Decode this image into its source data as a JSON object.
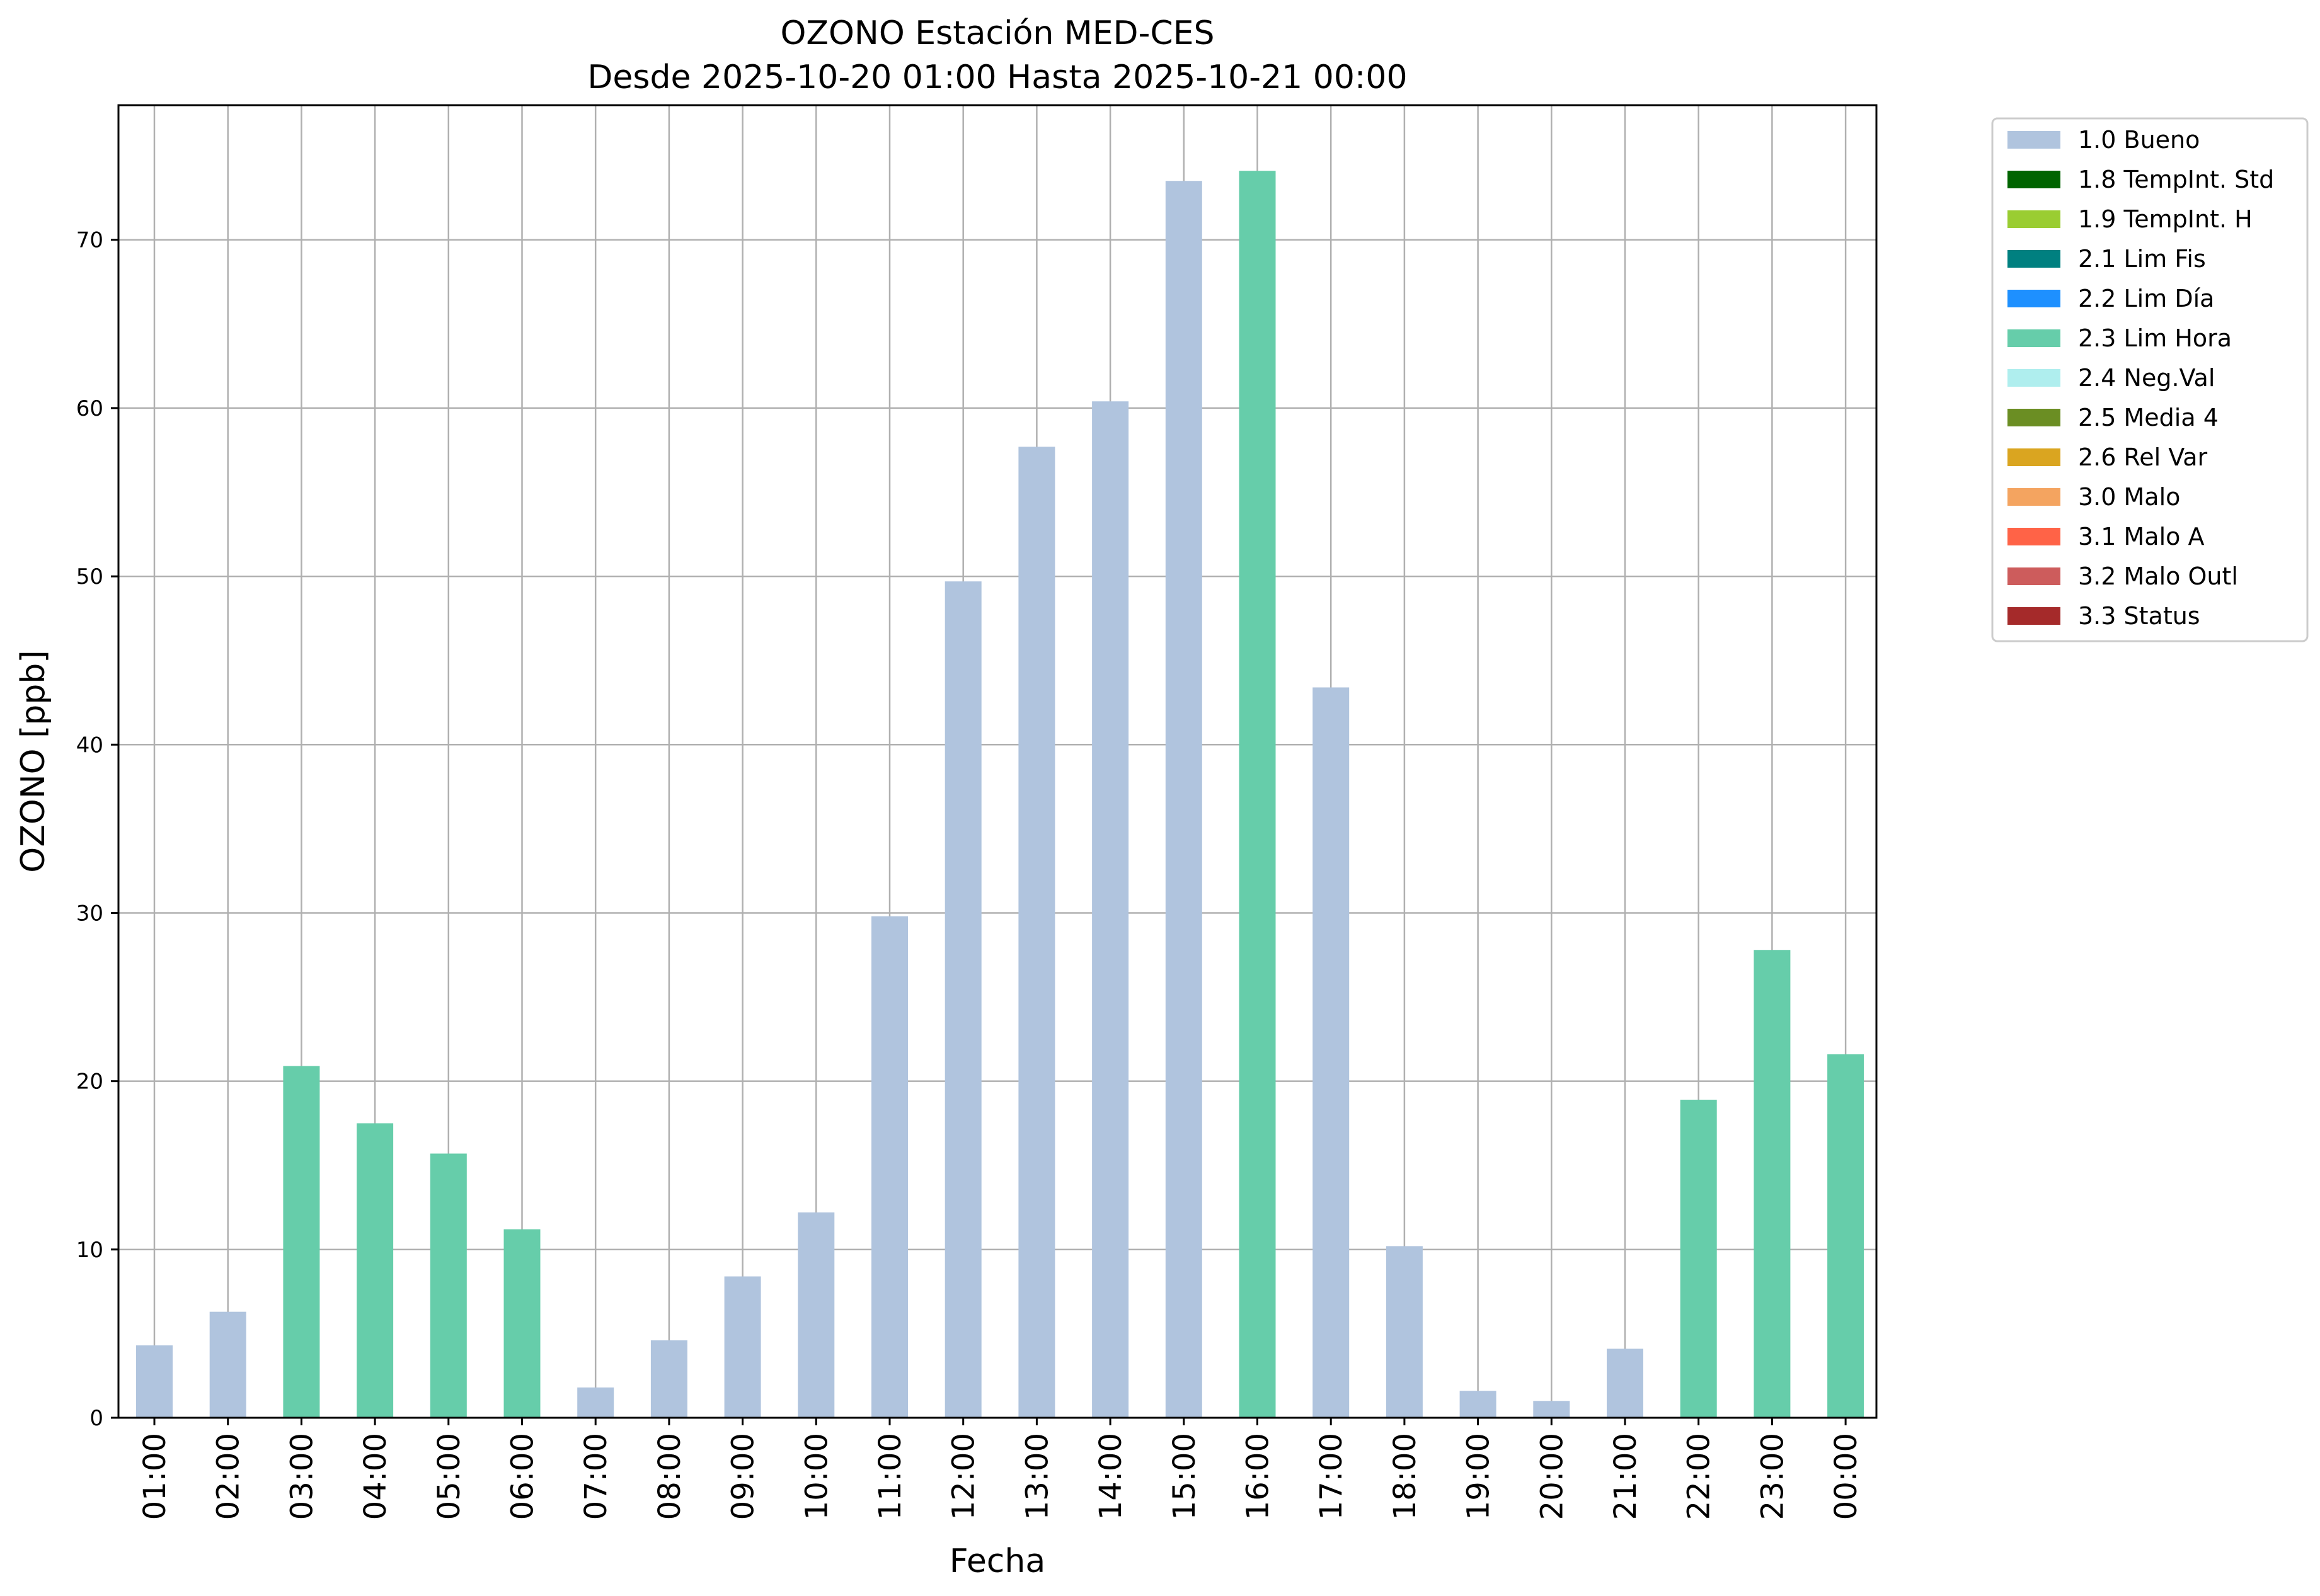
{
  "chart_data": {
    "type": "bar",
    "title": "OZONO Estación MED-CES",
    "subtitle": "Desde 2025-10-20 01:00 Hasta 2025-10-21 00:00",
    "xlabel": "Fecha",
    "ylabel": "OZONO [ppb]",
    "ylim": [
      0,
      78
    ],
    "yticks": [
      0,
      10,
      20,
      30,
      40,
      50,
      60,
      70
    ],
    "grid": true,
    "legend_position": "outside-top-right",
    "categories": [
      "01:00",
      "02:00",
      "03:00",
      "04:00",
      "05:00",
      "06:00",
      "07:00",
      "08:00",
      "09:00",
      "10:00",
      "11:00",
      "12:00",
      "13:00",
      "14:00",
      "15:00",
      "16:00",
      "17:00",
      "18:00",
      "19:00",
      "20:00",
      "21:00",
      "22:00",
      "23:00",
      "00:00"
    ],
    "values": [
      4.3,
      6.3,
      20.9,
      17.5,
      15.7,
      11.2,
      1.8,
      4.6,
      8.4,
      12.2,
      29.8,
      49.7,
      57.7,
      60.4,
      73.5,
      74.1,
      43.4,
      10.2,
      1.6,
      1.0,
      4.1,
      18.9,
      27.8,
      21.6
    ],
    "flags": [
      "1.0 Bueno",
      "1.0 Bueno",
      "2.3 Lim Hora",
      "2.3 Lim Hora",
      "2.3 Lim Hora",
      "2.3 Lim Hora",
      "1.0 Bueno",
      "1.0 Bueno",
      "1.0 Bueno",
      "1.0 Bueno",
      "1.0 Bueno",
      "1.0 Bueno",
      "1.0 Bueno",
      "1.0 Bueno",
      "1.0 Bueno",
      "2.3 Lim Hora",
      "1.0 Bueno",
      "1.0 Bueno",
      "1.0 Bueno",
      "1.0 Bueno",
      "1.0 Bueno",
      "2.3 Lim Hora",
      "2.3 Lim Hora",
      "2.3 Lim Hora"
    ],
    "legend": [
      {
        "label": "1.0 Bueno",
        "color": "#b0c4de"
      },
      {
        "label": "1.8 TempInt. Std",
        "color": "#006400"
      },
      {
        "label": "1.9 TempInt. H",
        "color": "#9acd32"
      },
      {
        "label": "2.1 Lim Fis",
        "color": "#008080"
      },
      {
        "label": "2.2 Lim Día",
        "color": "#1e90ff"
      },
      {
        "label": "2.3 Lim Hora",
        "color": "#66cdaa"
      },
      {
        "label": "2.4 Neg.Val",
        "color": "#afeeee"
      },
      {
        "label": "2.5 Media 4",
        "color": "#6b8e23"
      },
      {
        "label": "2.6 Rel Var",
        "color": "#daa520"
      },
      {
        "label": "3.0 Malo",
        "color": "#f4a460"
      },
      {
        "label": "3.1 Malo A",
        "color": "#ff6347"
      },
      {
        "label": "3.2 Malo Outl",
        "color": "#cd5c5c"
      },
      {
        "label": "3.3 Status",
        "color": "#a52a2a"
      }
    ]
  }
}
